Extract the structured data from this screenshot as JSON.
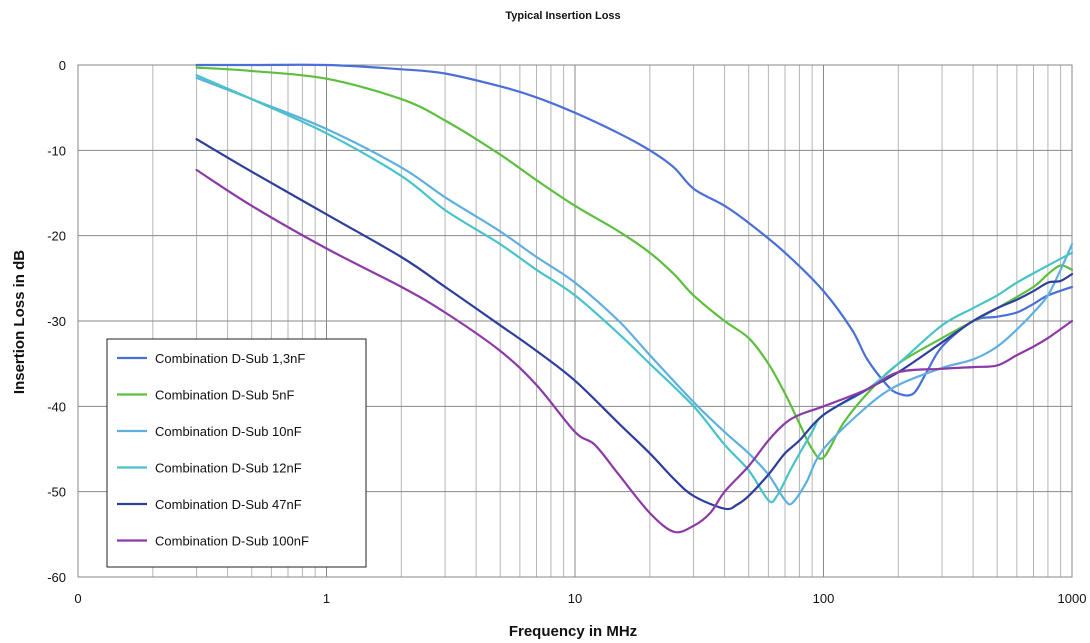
{
  "chart_data": {
    "type": "line",
    "title": "Typical Insertion Loss",
    "xlabel": "Frequency in MHz",
    "ylabel": "Insertion Loss in dB",
    "x_scale": "log",
    "xlim": [
      0.1,
      1000
    ],
    "ylim": [
      -60,
      0
    ],
    "x_tick_labels": [
      "0",
      "1",
      "10",
      "100",
      "1000"
    ],
    "y_ticks": [
      0,
      -10,
      -20,
      -30,
      -40,
      -50,
      -60
    ],
    "grid": true,
    "legend_position": "lower-left",
    "series": [
      {
        "name": "Combination D-Sub 1,3nF",
        "color": "#4a6fd6",
        "points": [
          [
            0.3,
            0
          ],
          [
            0.5,
            0
          ],
          [
            1,
            0
          ],
          [
            2,
            -0.5
          ],
          [
            3,
            -1
          ],
          [
            5,
            -2.5
          ],
          [
            7,
            -3.8
          ],
          [
            10,
            -5.6
          ],
          [
            15,
            -8
          ],
          [
            20,
            -10
          ],
          [
            25,
            -12
          ],
          [
            30,
            -14.5
          ],
          [
            40,
            -16.5
          ],
          [
            50,
            -18.5
          ],
          [
            70,
            -22
          ],
          [
            100,
            -26.5
          ],
          [
            130,
            -31
          ],
          [
            150,
            -34.5
          ],
          [
            180,
            -37.5
          ],
          [
            200,
            -38.5
          ],
          [
            230,
            -38.5
          ],
          [
            260,
            -36
          ],
          [
            300,
            -33
          ],
          [
            400,
            -30
          ],
          [
            500,
            -29.5
          ],
          [
            600,
            -29
          ],
          [
            700,
            -28
          ],
          [
            800,
            -27
          ],
          [
            1000,
            -26
          ]
        ]
      },
      {
        "name": "Combination D-Sub 5nF",
        "color": "#5cbf3e",
        "points": [
          [
            0.3,
            -0.3
          ],
          [
            0.5,
            -0.7
          ],
          [
            1,
            -1.6
          ],
          [
            2,
            -4
          ],
          [
            3,
            -6.5
          ],
          [
            5,
            -10.5
          ],
          [
            7,
            -13.5
          ],
          [
            10,
            -16.5
          ],
          [
            15,
            -19.5
          ],
          [
            20,
            -22
          ],
          [
            25,
            -24.5
          ],
          [
            30,
            -27
          ],
          [
            40,
            -30
          ],
          [
            50,
            -32
          ],
          [
            60,
            -35
          ],
          [
            70,
            -38.5
          ],
          [
            80,
            -42
          ],
          [
            90,
            -45
          ],
          [
            100,
            -46
          ],
          [
            120,
            -42
          ],
          [
            150,
            -38.5
          ],
          [
            200,
            -35
          ],
          [
            300,
            -32
          ],
          [
            400,
            -30
          ],
          [
            500,
            -28.5
          ],
          [
            700,
            -26
          ],
          [
            800,
            -24.5
          ],
          [
            900,
            -23.5
          ],
          [
            1000,
            -24
          ]
        ]
      },
      {
        "name": "Combination D-Sub 10nF",
        "color": "#5fb0e0",
        "points": [
          [
            0.3,
            -1.5
          ],
          [
            0.5,
            -4
          ],
          [
            1,
            -7.5
          ],
          [
            2,
            -12
          ],
          [
            3,
            -15.5
          ],
          [
            5,
            -19.5
          ],
          [
            7,
            -22.5
          ],
          [
            10,
            -25.5
          ],
          [
            15,
            -30
          ],
          [
            20,
            -34
          ],
          [
            30,
            -39.5
          ],
          [
            40,
            -43
          ],
          [
            50,
            -45.5
          ],
          [
            60,
            -48
          ],
          [
            70,
            -51
          ],
          [
            75,
            -51.3
          ],
          [
            85,
            -49
          ],
          [
            100,
            -45
          ],
          [
            150,
            -40
          ],
          [
            200,
            -37.5
          ],
          [
            300,
            -35.5
          ],
          [
            400,
            -34.5
          ],
          [
            500,
            -33
          ],
          [
            600,
            -31
          ],
          [
            700,
            -29
          ],
          [
            800,
            -27
          ],
          [
            900,
            -24
          ],
          [
            1000,
            -21
          ]
        ]
      },
      {
        "name": "Combination D-Sub 12nF",
        "color": "#48c4c9",
        "points": [
          [
            0.3,
            -1.2
          ],
          [
            0.5,
            -4
          ],
          [
            1,
            -8
          ],
          [
            2,
            -13
          ],
          [
            3,
            -17
          ],
          [
            5,
            -21
          ],
          [
            7,
            -24
          ],
          [
            10,
            -27
          ],
          [
            15,
            -31.5
          ],
          [
            20,
            -35
          ],
          [
            30,
            -40
          ],
          [
            40,
            -44.5
          ],
          [
            50,
            -47.5
          ],
          [
            60,
            -51
          ],
          [
            65,
            -50.5
          ],
          [
            75,
            -47
          ],
          [
            90,
            -43
          ],
          [
            100,
            -41
          ],
          [
            150,
            -38
          ],
          [
            200,
            -35
          ],
          [
            300,
            -30.5
          ],
          [
            400,
            -28.5
          ],
          [
            500,
            -27
          ],
          [
            600,
            -25.5
          ],
          [
            800,
            -23.5
          ],
          [
            1000,
            -22
          ]
        ]
      },
      {
        "name": "Combination D-Sub 47nF",
        "color": "#2e3e9c",
        "points": [
          [
            0.3,
            -8.7
          ],
          [
            0.5,
            -12.5
          ],
          [
            1,
            -17.5
          ],
          [
            2,
            -22.5
          ],
          [
            3,
            -26
          ],
          [
            5,
            -30.5
          ],
          [
            7,
            -33.5
          ],
          [
            10,
            -37
          ],
          [
            15,
            -42
          ],
          [
            20,
            -45.5
          ],
          [
            25,
            -48.5
          ],
          [
            30,
            -50.5
          ],
          [
            40,
            -52
          ],
          [
            45,
            -51.5
          ],
          [
            50,
            -50.5
          ],
          [
            60,
            -48
          ],
          [
            70,
            -45.5
          ],
          [
            80,
            -44
          ],
          [
            100,
            -41
          ],
          [
            150,
            -38
          ],
          [
            200,
            -36
          ],
          [
            300,
            -32.5
          ],
          [
            400,
            -30
          ],
          [
            500,
            -28.5
          ],
          [
            600,
            -27.5
          ],
          [
            700,
            -26.5
          ],
          [
            800,
            -25.5
          ],
          [
            900,
            -25.3
          ],
          [
            1000,
            -24.5
          ]
        ]
      },
      {
        "name": "Combination D-Sub 100nF",
        "color": "#8b3aa6",
        "points": [
          [
            0.3,
            -12.3
          ],
          [
            0.5,
            -16.5
          ],
          [
            1,
            -21.5
          ],
          [
            2,
            -26
          ],
          [
            3,
            -29
          ],
          [
            5,
            -33.5
          ],
          [
            7,
            -37.5
          ],
          [
            10,
            -43
          ],
          [
            12,
            -44.5
          ],
          [
            15,
            -48
          ],
          [
            20,
            -52.5
          ],
          [
            25,
            -54.7
          ],
          [
            30,
            -54
          ],
          [
            35,
            -52.5
          ],
          [
            40,
            -50
          ],
          [
            50,
            -47
          ],
          [
            60,
            -44
          ],
          [
            70,
            -42
          ],
          [
            80,
            -41
          ],
          [
            100,
            -40
          ],
          [
            150,
            -38
          ],
          [
            200,
            -36
          ],
          [
            300,
            -35.6
          ],
          [
            400,
            -35.4
          ],
          [
            500,
            -35.2
          ],
          [
            600,
            -34
          ],
          [
            700,
            -33
          ],
          [
            800,
            -32
          ],
          [
            1000,
            -30
          ]
        ]
      }
    ]
  }
}
